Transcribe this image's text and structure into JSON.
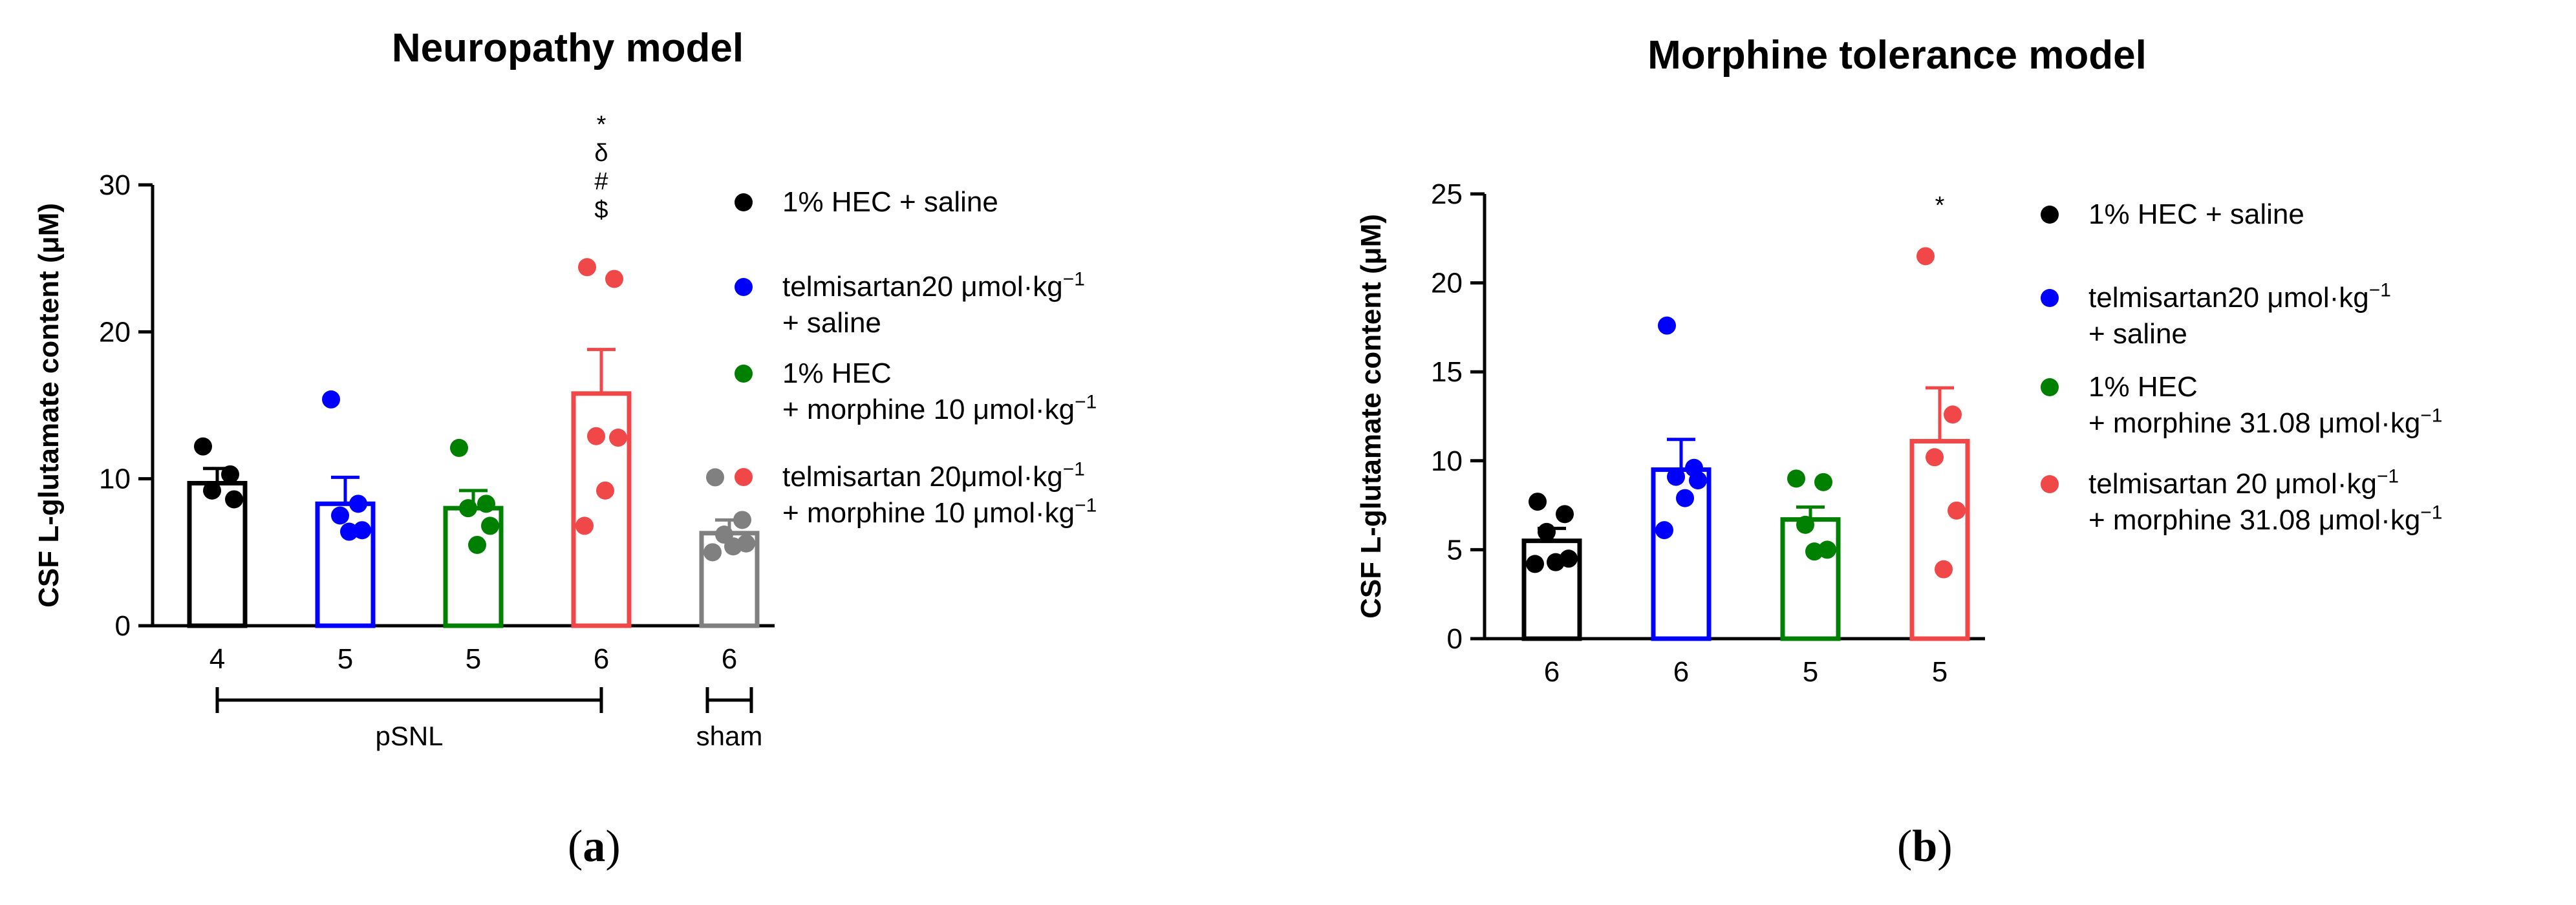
{
  "chart_data": [
    {
      "type": "bar",
      "title": "Neuropathy model",
      "ylabel": "CSF L-glutamate content (μM)",
      "ylim": [
        0,
        30
      ],
      "yticks": [
        "0",
        "10",
        "20",
        "30"
      ],
      "categories": [
        "4",
        "5",
        "5",
        "6",
        "6"
      ],
      "group_labels": [
        {
          "label": "pSNL",
          "span": [
            0,
            3
          ]
        },
        {
          "label": "sham",
          "span": [
            4,
            4
          ]
        }
      ],
      "series": [
        {
          "name": "1% HEC + saline",
          "color": "#000000",
          "mean": 9.7,
          "sem": 1.0,
          "points": [
            12.2,
            10.3,
            9.2,
            8.6
          ]
        },
        {
          "name": "telmisartan20 μmol·kg⁻¹ + saline",
          "color": "#0000ff",
          "mean": 8.3,
          "sem": 1.8,
          "points": [
            15.4,
            8.3,
            7.5,
            6.5,
            6.4
          ]
        },
        {
          "name": "1% HEC + morphine 10 μmol·kg⁻¹",
          "color": "#008000",
          "mean": 8.0,
          "sem": 1.2,
          "points": [
            12.1,
            8.3,
            8.0,
            6.8,
            5.5
          ]
        },
        {
          "name": "telmisartan 20μmol·kg⁻¹ + morphine 10 μmol·kg⁻¹",
          "color": "#f04848",
          "mean": 15.8,
          "sem": 3.0,
          "points": [
            24.4,
            23.6,
            12.9,
            12.8,
            9.2,
            6.8
          ]
        },
        {
          "name": "sham",
          "color": "#808080",
          "mean": 6.3,
          "sem": 0.9,
          "points": [
            10.1,
            7.2,
            6.2,
            5.6,
            5.4,
            5.0
          ]
        }
      ],
      "annotations": [
        "*",
        "δ",
        "#",
        "$"
      ],
      "legend": [
        {
          "line1": "1% HEC + saline",
          "line2": "",
          "color": "#000000"
        },
        {
          "line1": "telmisartan20 μmol·kg⁻¹",
          "line2": "+ saline",
          "color": "#0000ff"
        },
        {
          "line1": "1% HEC",
          "line2": "+ morphine 10 μmol·kg⁻¹",
          "color": "#008000"
        },
        {
          "line1": "telmisartan 20μmol·kg⁻¹",
          "line2": "+ morphine 10 μmol·kg⁻¹",
          "color": "#f04848"
        }
      ],
      "panel_label": "a"
    },
    {
      "type": "bar",
      "title": "Morphine tolerance model",
      "ylabel": "CSF L-glutamate content (μM)",
      "ylim": [
        0,
        25
      ],
      "yticks": [
        "0",
        "5",
        "10",
        "15",
        "20",
        "25"
      ],
      "categories": [
        "6",
        "6",
        "5",
        "5"
      ],
      "series": [
        {
          "name": "1% HEC + saline",
          "color": "#000000",
          "mean": 5.5,
          "sem": 0.7,
          "points": [
            7.7,
            7.0,
            6.0,
            4.5,
            4.3,
            4.2
          ]
        },
        {
          "name": "telmisartan20 μmol·kg⁻¹ + saline",
          "color": "#0000ff",
          "mean": 9.5,
          "sem": 1.7,
          "points": [
            17.6,
            9.6,
            9.1,
            8.9,
            7.9,
            6.1
          ]
        },
        {
          "name": "1% HEC + morphine 31.08 μmol·kg⁻¹",
          "color": "#008000",
          "mean": 6.7,
          "sem": 0.7,
          "points": [
            9.0,
            8.8,
            6.4,
            5.0,
            4.9
          ]
        },
        {
          "name": "telmisartan 20 μmol·kg⁻¹ + morphine 31.08 μmol·kg⁻¹",
          "color": "#f04848",
          "mean": 11.1,
          "sem": 3.0,
          "points": [
            21.5,
            12.6,
            10.2,
            7.2,
            3.9
          ]
        }
      ],
      "annotations": [
        "*"
      ],
      "legend": [
        {
          "line1": "1% HEC + saline",
          "line2": "",
          "color": "#000000"
        },
        {
          "line1": "telmisartan20 μmol·kg⁻¹",
          "line2": "+ saline",
          "color": "#0000ff"
        },
        {
          "line1": "1% HEC",
          "line2": "+ morphine 31.08 μmol·kg⁻¹",
          "color": "#008000"
        },
        {
          "line1": "telmisartan 20 μmol·kg⁻¹",
          "line2": "+ morphine 31.08 μmol·kg⁻¹",
          "color": "#f04848"
        }
      ],
      "panel_label": "b"
    }
  ]
}
